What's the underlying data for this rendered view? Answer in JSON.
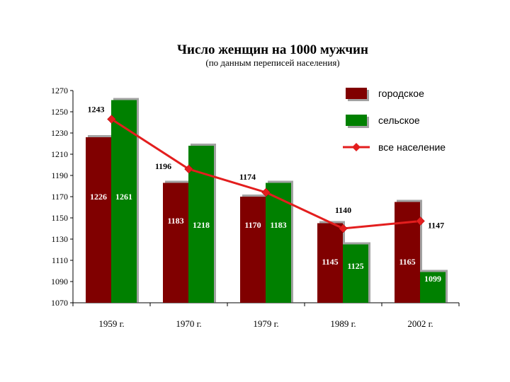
{
  "chart_data": {
    "type": "bar",
    "title": "Число женщин на 1000 мужчин",
    "subtitle": "(по данным переписей населения)",
    "categories": [
      "1959 г.",
      "1970 г.",
      "1979 г.",
      "1989 г.",
      "2002 г."
    ],
    "ylim": [
      1070,
      1270
    ],
    "yticks": [
      1070,
      1090,
      1110,
      1130,
      1150,
      1170,
      1190,
      1210,
      1230,
      1250,
      1270
    ],
    "series": [
      {
        "name": "городское",
        "type": "bar",
        "color": "#800000",
        "values": [
          1226,
          1183,
          1170,
          1145,
          1165
        ]
      },
      {
        "name": "сельское",
        "type": "bar",
        "color": "#008000",
        "values": [
          1261,
          1218,
          1183,
          1125,
          1099
        ]
      },
      {
        "name": "все население",
        "type": "line",
        "color": "#e31e1e",
        "values": [
          1243,
          1196,
          1174,
          1140,
          1147
        ]
      }
    ],
    "legend": "top-right",
    "grid": false
  }
}
